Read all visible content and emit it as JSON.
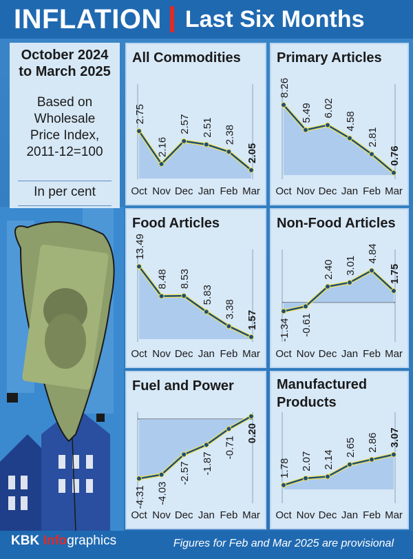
{
  "header": {
    "title": "INFLATION",
    "subtitle": "Last Six Months"
  },
  "left_panel": {
    "period_line1": "October 2024",
    "period_line2": "to March 2025",
    "desc_line1": "Based on",
    "desc_line2": "Wholesale",
    "desc_line3": "Price Index,",
    "desc_line4": "2011-12=100",
    "unit": "In per cent"
  },
  "footer": {
    "brand_kbk": "KBK",
    "brand_info": "Info",
    "brand_graphics": "graphics",
    "note": "Figures for Feb and Mar 2025 are provisional"
  },
  "colors": {
    "line": "#1d4f78",
    "line_glow": "#f2e25a",
    "fill": "#a6c5ea",
    "panel": "#d7e8f7"
  },
  "chart_data": [
    {
      "type": "area",
      "title": "All Commodities",
      "categories": [
        "Oct",
        "Nov",
        "Dec",
        "Jan",
        "Feb",
        "Mar"
      ],
      "values": [
        2.75,
        2.16,
        2.57,
        2.51,
        2.38,
        2.05
      ],
      "labels": [
        "2.75",
        "2.16",
        "2.57",
        "2.51",
        "2.38",
        "2.05"
      ]
    },
    {
      "type": "area",
      "title": "Primary Articles",
      "categories": [
        "Oct",
        "Nov",
        "Dec",
        "Jan",
        "Feb",
        "Mar"
      ],
      "values": [
        8.26,
        5.49,
        6.02,
        4.58,
        2.81,
        0.76
      ],
      "labels": [
        "8.26",
        "5.49",
        "6.02",
        "4.58",
        "2.81",
        "0.76"
      ]
    },
    {
      "type": "area",
      "title": "Food Articles",
      "categories": [
        "Oct",
        "Nov",
        "Dec",
        "Jan",
        "Feb",
        "Mar"
      ],
      "values": [
        13.49,
        8.48,
        8.53,
        5.83,
        3.38,
        1.57
      ],
      "labels": [
        "13.49",
        "8.48",
        "8.53",
        "5.83",
        "3.38",
        "1.57"
      ]
    },
    {
      "type": "area",
      "title": "Non-Food Articles",
      "categories": [
        "Oct",
        "Nov",
        "Dec",
        "Jan",
        "Feb",
        "Mar"
      ],
      "values": [
        -1.34,
        -0.61,
        2.4,
        3.01,
        4.84,
        1.75
      ],
      "labels": [
        "-1.34",
        "-0.61",
        "2.40",
        "3.01",
        "4.84",
        "1.75"
      ]
    },
    {
      "type": "area",
      "title": "Fuel and Power",
      "categories": [
        "Oct",
        "Nov",
        "Dec",
        "Jan",
        "Feb",
        "Mar"
      ],
      "values": [
        -4.31,
        -4.03,
        -2.57,
        -1.87,
        -0.71,
        0.2
      ],
      "labels": [
        "-4.31",
        "-4.03",
        "-2.57",
        "-1.87",
        "-0.71",
        "0.20"
      ]
    },
    {
      "type": "area",
      "title_line1": "Manufactured",
      "title_line2": "Products",
      "categories": [
        "Oct",
        "Nov",
        "Dec",
        "Jan",
        "Feb",
        "Mar"
      ],
      "values": [
        1.78,
        2.07,
        2.14,
        2.65,
        2.86,
        3.07
      ],
      "labels": [
        "1.78",
        "2.07",
        "2.14",
        "2.65",
        "2.86",
        "3.07"
      ]
    }
  ]
}
